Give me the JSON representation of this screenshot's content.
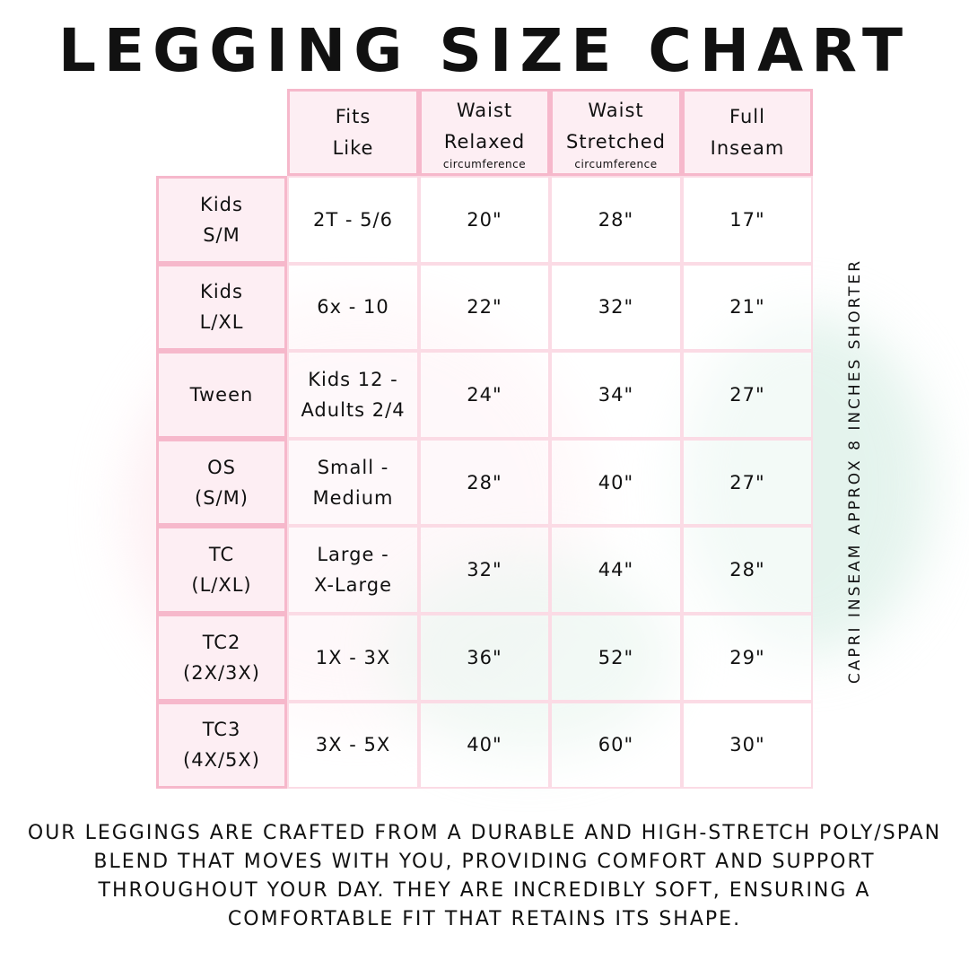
{
  "title": "LEGGING SIZE CHART",
  "colors": {
    "header_fill": "#fdeef3",
    "header_border": "#f6b8cb",
    "body_border": "#fbdbe5"
  },
  "columns": [
    {
      "main": "Fits\nLike",
      "sub": ""
    },
    {
      "main": "Waist\nRelaxed",
      "sub": "circumference"
    },
    {
      "main": "Waist\nStretched",
      "sub": "circumference"
    },
    {
      "main": "Full\nInseam",
      "sub": ""
    }
  ],
  "rows": [
    {
      "size": "Kids\nS/M",
      "fits": "2T - 5/6",
      "relaxed": "20\"",
      "stretched": "28\"",
      "inseam": "17\""
    },
    {
      "size": "Kids\nL/XL",
      "fits": "6x - 10",
      "relaxed": "22\"",
      "stretched": "32\"",
      "inseam": "21\""
    },
    {
      "size": "Tween",
      "fits": "Kids 12 -\nAdults 2/4",
      "relaxed": "24\"",
      "stretched": "34\"",
      "inseam": "27\""
    },
    {
      "size": "OS\n(S/M)",
      "fits": "Small -\nMedium",
      "relaxed": "28\"",
      "stretched": "40\"",
      "inseam": "27\""
    },
    {
      "size": "TC\n(L/XL)",
      "fits": "Large -\nX-Large",
      "relaxed": "32\"",
      "stretched": "44\"",
      "inseam": "28\""
    },
    {
      "size": "TC2\n(2X/3X)",
      "fits": "1X - 3X",
      "relaxed": "36\"",
      "stretched": "52\"",
      "inseam": "29\""
    },
    {
      "size": "TC3\n(4X/5X)",
      "fits": "3X - 5X",
      "relaxed": "40\"",
      "stretched": "60\"",
      "inseam": "30\""
    }
  ],
  "side_note": "CAPRI INSEAM APPROX 8 INCHES SHORTER",
  "footer": "Our leggings are crafted from a durable and high-stretch poly/span blend that moves with you, providing comfort and support throughout your day. They are incredibly soft, ensuring a comfortable fit that retains its shape."
}
